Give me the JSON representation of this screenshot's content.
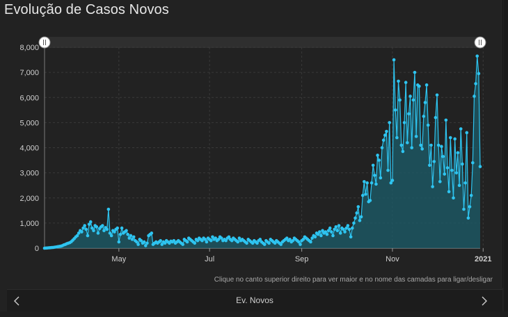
{
  "title": "Evolução de Casos Novos",
  "hint": "Clique no canto superior direito para ver maior e no nome das camadas para ligar/desligar",
  "footer": {
    "label": "Ev. Novos",
    "prev_icon": "chevron-left-icon",
    "next_icon": "chevron-right-icon"
  },
  "colors": {
    "line": "#2ec4f0",
    "fill": "#1d5a66",
    "grid": "#3a3a3a",
    "scrollbar": "#2f2f2f"
  },
  "chart_data": {
    "type": "area",
    "title": "Evolução de Casos Novos",
    "xlabel": "",
    "ylabel": "",
    "ylim": [
      0,
      8000
    ],
    "yticks": [
      "0",
      "1,000",
      "2,000",
      "3,000",
      "4,000",
      "5,000",
      "6,000",
      "7,000",
      "8,000"
    ],
    "xticks": [
      {
        "label": "May",
        "x": "2020-05-01"
      },
      {
        "label": "Jul",
        "x": "2020-07-01"
      },
      {
        "label": "Sep",
        "x": "2020-09-01"
      },
      {
        "label": "Nov",
        "x": "2020-11-01"
      },
      {
        "label": "2021",
        "x": "2021-01-01"
      }
    ],
    "grid": true,
    "series": [
      {
        "x_start": "2020-03-12",
        "x_step_days": 1,
        "values": [
          0,
          5,
          10,
          15,
          20,
          25,
          30,
          40,
          50,
          60,
          70,
          80,
          100,
          130,
          150,
          180,
          200,
          220,
          260,
          320,
          380,
          450,
          500,
          600,
          700,
          650,
          800,
          900,
          750,
          500,
          950,
          1050,
          800,
          700,
          900,
          850,
          600,
          780,
          850,
          900,
          700,
          820,
          750,
          1550,
          600,
          500,
          700,
          650,
          750,
          800,
          250,
          550,
          800,
          600,
          650,
          700,
          550,
          400,
          500,
          350,
          450,
          300,
          250,
          150,
          350,
          300,
          200,
          250,
          100,
          200,
          500,
          550,
          600,
          150,
          200,
          250,
          200,
          250,
          300,
          150,
          250,
          200,
          300,
          250,
          200,
          280,
          250,
          300,
          200,
          250,
          300,
          250,
          200,
          150,
          350,
          300,
          250,
          400,
          350,
          300,
          250,
          200,
          350,
          300,
          400,
          350,
          300,
          400,
          350,
          250,
          400,
          350,
          300,
          450,
          350,
          400,
          300,
          350,
          450,
          400,
          300,
          350,
          300,
          400,
          450,
          350,
          300,
          400,
          350,
          300,
          250,
          400,
          300,
          350,
          300,
          250,
          200,
          350,
          300,
          250,
          200,
          300,
          250,
          200,
          300,
          350,
          250,
          200,
          150,
          300,
          250,
          200,
          350,
          300,
          250,
          200,
          300,
          250,
          200,
          150,
          250,
          300,
          350,
          400,
          300,
          350,
          250,
          300,
          400,
          350,
          300,
          250,
          150,
          300,
          350,
          450,
          400,
          350,
          300,
          250,
          400,
          500,
          450,
          600,
          550,
          650,
          500,
          700,
          600,
          650,
          550,
          700,
          800,
          650,
          500,
          750,
          850,
          700,
          900,
          600,
          800,
          750,
          650,
          800,
          900,
          750,
          450,
          800,
          1000,
          1200,
          1400,
          1650,
          1100,
          1250,
          2100,
          2650,
          2150,
          2600,
          1850,
          1900,
          2600,
          3300,
          2900,
          2550,
          3700,
          3500,
          2800,
          4000,
          4300,
          4500,
          4650,
          3100,
          5000,
          2600,
          2700,
          7500,
          5500,
          4400,
          6650,
          5900,
          4100,
          3850,
          5000,
          6600,
          4200,
          5350,
          6050,
          4000,
          5900,
          7000,
          4450,
          6500,
          6450,
          4100,
          3950,
          5250,
          5800,
          6500,
          4900,
          3300,
          4100,
          2450,
          3450,
          5200,
          6100,
          4100,
          2650,
          4050,
          3650,
          2950,
          5100,
          3200,
          2250,
          4400,
          3100,
          2000,
          4350,
          3000,
          3800,
          2500,
          4750,
          3350,
          1550,
          2600,
          4600,
          1200,
          1650,
          2100,
          3400,
          6050,
          6550,
          7650,
          6950,
          3250
        ]
      }
    ]
  }
}
